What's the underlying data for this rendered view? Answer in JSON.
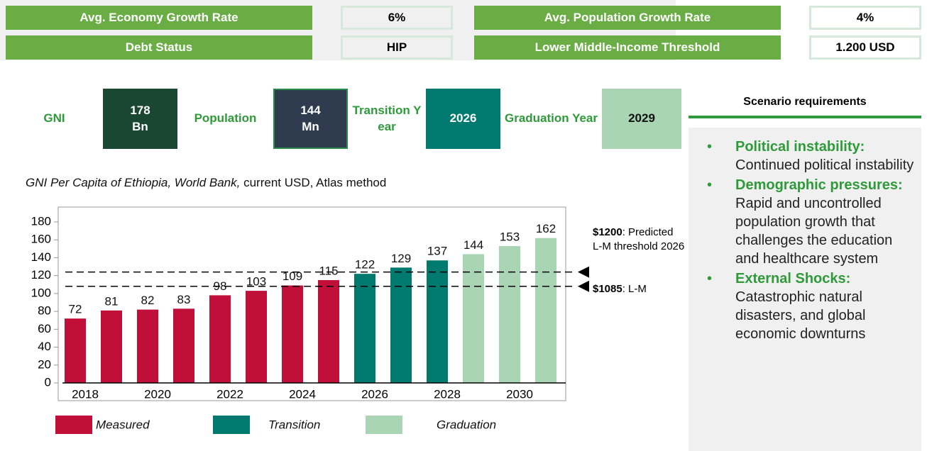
{
  "metrics": [
    {
      "label": "Avg. Economy Growth Rate",
      "value": "6%"
    },
    {
      "label": "Avg. Population Growth Rate",
      "value": "4%"
    },
    {
      "label": "Debt Status",
      "value": "HIP"
    },
    {
      "label": "Lower Middle-Income Threshold",
      "value": "1.200 USD"
    }
  ],
  "stats": [
    {
      "label": "GNI",
      "value": "178 Bn"
    },
    {
      "label": "Population",
      "value": "144 Mn"
    },
    {
      "label": "Transition Year",
      "value": "2026"
    },
    {
      "label": "Graduation Year",
      "value": "2029"
    }
  ],
  "scenario": {
    "title": "Scenario requirements",
    "items": [
      {
        "term": "Political instability:",
        "text": "Continued political instability"
      },
      {
        "term": "Demographic pressures:",
        "text": "Rapid and uncontrolled population growth that challenges the education and healthcare system"
      },
      {
        "term": "External Shocks:",
        "text": "Catastrophic natural disasters, and global economic downturns"
      }
    ]
  },
  "chart_data": {
    "type": "bar",
    "subtitle_italic": "GNI Per Capita of Ethiopia, World Bank,",
    "subtitle": "current USD, Atlas method",
    "categories": [
      "2018",
      null,
      "2020",
      null,
      "2022",
      null,
      "2024",
      null,
      "2026",
      null,
      "2028",
      null,
      "2030",
      null
    ],
    "series": [
      {
        "name": "Measured",
        "color": "#c0103a",
        "values": [
          72,
          81,
          82,
          83,
          98,
          103,
          109,
          115,
          null,
          null,
          null,
          null,
          null,
          null
        ]
      },
      {
        "name": "Transition",
        "color": "#007a6e",
        "values": [
          null,
          null,
          null,
          null,
          null,
          null,
          null,
          null,
          122,
          129,
          137,
          null,
          null,
          null
        ]
      },
      {
        "name": "Graduation",
        "color": "#a9d5b5",
        "values": [
          null,
          null,
          null,
          null,
          null,
          null,
          null,
          null,
          null,
          null,
          null,
          144,
          153,
          162
        ]
      }
    ],
    "ylim": [
      0,
      180
    ],
    "yticks": [
      0,
      20,
      40,
      60,
      80,
      100,
      120,
      140,
      160,
      180
    ],
    "reference_lines": [
      {
        "value": 124,
        "bold": "$1200",
        "text": ": Predicted L-M threshold 2026"
      },
      {
        "value": 108,
        "bold": "$1085",
        "text": ": L-M"
      }
    ]
  }
}
